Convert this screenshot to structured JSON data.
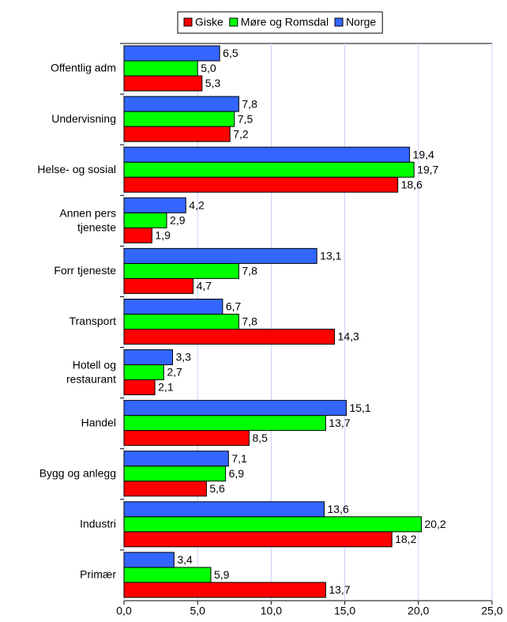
{
  "chart_data": {
    "type": "hbar",
    "categories": [
      "Offentlig adm",
      "Undervisning",
      "Helse- og sosial",
      "Annen pers\ntjeneste",
      "Forr tjeneste",
      "Transport",
      "Hotell og\nrestaurant",
      "Handel",
      "Bygg og anlegg",
      "Industri",
      "Primær"
    ],
    "series": [
      {
        "name": "Giske",
        "color": "#ff0000",
        "values": [
          5.3,
          7.2,
          18.6,
          1.9,
          4.7,
          14.3,
          2.1,
          8.5,
          5.6,
          18.2,
          13.7
        ],
        "value_labels": [
          "5,3",
          "7,2",
          "18,6",
          "1,9",
          "4,7",
          "14,3",
          "2,1",
          "8,5",
          "5,6",
          "18,2",
          "13,7"
        ]
      },
      {
        "name": "Møre og Romsdal",
        "color": "#00ff00",
        "values": [
          5.0,
          7.5,
          19.7,
          2.9,
          7.8,
          7.8,
          2.7,
          13.7,
          6.9,
          20.2,
          5.9
        ],
        "value_labels": [
          "5,0",
          "7,5",
          "19,7",
          "2,9",
          "7,8",
          "7,8",
          "2,7",
          "13,7",
          "6,9",
          "20,2",
          "5,9"
        ]
      },
      {
        "name": "Norge",
        "color": "#3366ff",
        "values": [
          6.5,
          7.8,
          19.4,
          4.2,
          13.1,
          6.7,
          3.3,
          15.1,
          7.1,
          13.6,
          3.4
        ],
        "value_labels": [
          "6,5",
          "7,8",
          "19,4",
          "4,2",
          "13,1",
          "6,7",
          "3,3",
          "15,1",
          "7,1",
          "13,6",
          "3,4"
        ]
      }
    ],
    "xlim": [
      0,
      25
    ],
    "xticks": [
      {
        "value": 0,
        "label": "0,0"
      },
      {
        "value": 5,
        "label": "5,0"
      },
      {
        "value": 10,
        "label": "10,0"
      },
      {
        "value": 15,
        "label": "15,0"
      },
      {
        "value": 20,
        "label": "20,0"
      },
      {
        "value": 25,
        "label": "25,0"
      }
    ],
    "grid": true,
    "legend": "top"
  }
}
